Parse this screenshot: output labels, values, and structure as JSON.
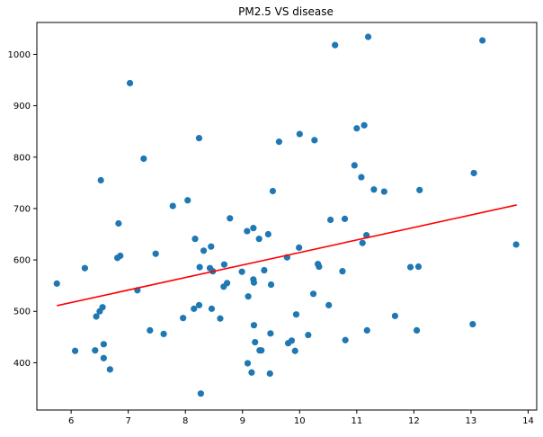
{
  "chart_data": {
    "type": "scatter",
    "title": "PM2.5 VS disease",
    "xlabel": "",
    "ylabel": "",
    "xlim": [
      5.4,
      14.15
    ],
    "ylim": [
      308,
      1062
    ],
    "xticks": [
      6,
      7,
      8,
      9,
      10,
      11,
      12,
      13,
      14
    ],
    "yticks": [
      400,
      500,
      600,
      700,
      800,
      900,
      1000
    ],
    "grid": false,
    "legend": "none",
    "colors": {
      "points": "#1f77b4",
      "fit_line": "#ff0000"
    },
    "fit_line": {
      "x": [
        5.75,
        13.8
      ],
      "y": [
        511,
        707
      ]
    },
    "points": [
      [
        5.75,
        554
      ],
      [
        6.07,
        423
      ],
      [
        6.24,
        584
      ],
      [
        6.42,
        424
      ],
      [
        6.44,
        490
      ],
      [
        6.5,
        500
      ],
      [
        6.52,
        755
      ],
      [
        6.55,
        508
      ],
      [
        6.57,
        436
      ],
      [
        6.57,
        409
      ],
      [
        6.68,
        387
      ],
      [
        6.81,
        604
      ],
      [
        6.83,
        671
      ],
      [
        6.86,
        608
      ],
      [
        7.03,
        944
      ],
      [
        7.16,
        541
      ],
      [
        7.27,
        797
      ],
      [
        7.38,
        463
      ],
      [
        7.48,
        612
      ],
      [
        7.62,
        456
      ],
      [
        7.78,
        705
      ],
      [
        7.96,
        487
      ],
      [
        8.04,
        716
      ],
      [
        8.15,
        505
      ],
      [
        8.17,
        641
      ],
      [
        8.24,
        837
      ],
      [
        8.24,
        512
      ],
      [
        8.25,
        586
      ],
      [
        8.27,
        340
      ],
      [
        8.32,
        618
      ],
      [
        8.43,
        584
      ],
      [
        8.45,
        626
      ],
      [
        8.46,
        505
      ],
      [
        8.48,
        578
      ],
      [
        8.61,
        486
      ],
      [
        8.67,
        548
      ],
      [
        8.68,
        591
      ],
      [
        8.73,
        555
      ],
      [
        8.78,
        681
      ],
      [
        8.99,
        577
      ],
      [
        9.08,
        656
      ],
      [
        9.09,
        399
      ],
      [
        9.1,
        529
      ],
      [
        9.16,
        381
      ],
      [
        9.19,
        662
      ],
      [
        9.19,
        562
      ],
      [
        9.2,
        556
      ],
      [
        9.2,
        473
      ],
      [
        9.22,
        440
      ],
      [
        9.29,
        641
      ],
      [
        9.3,
        424
      ],
      [
        9.33,
        424
      ],
      [
        9.38,
        580
      ],
      [
        9.45,
        650
      ],
      [
        9.48,
        379
      ],
      [
        9.49,
        457
      ],
      [
        9.5,
        552
      ],
      [
        9.53,
        734
      ],
      [
        9.64,
        830
      ],
      [
        9.78,
        605
      ],
      [
        9.8,
        438
      ],
      [
        9.86,
        443
      ],
      [
        9.92,
        423
      ],
      [
        9.94,
        494
      ],
      [
        9.99,
        624
      ],
      [
        10.0,
        845
      ],
      [
        10.15,
        454
      ],
      [
        10.24,
        534
      ],
      [
        10.26,
        833
      ],
      [
        10.32,
        592
      ],
      [
        10.34,
        587
      ],
      [
        10.51,
        512
      ],
      [
        10.54,
        678
      ],
      [
        10.62,
        1018
      ],
      [
        10.75,
        578
      ],
      [
        10.79,
        680
      ],
      [
        10.8,
        444
      ],
      [
        10.96,
        784
      ],
      [
        11.0,
        856
      ],
      [
        11.08,
        761
      ],
      [
        11.1,
        633
      ],
      [
        11.13,
        862
      ],
      [
        11.17,
        648
      ],
      [
        11.18,
        463
      ],
      [
        11.2,
        1034
      ],
      [
        11.3,
        737
      ],
      [
        11.48,
        733
      ],
      [
        11.67,
        491
      ],
      [
        11.94,
        586
      ],
      [
        12.05,
        463
      ],
      [
        12.08,
        587
      ],
      [
        12.1,
        736
      ],
      [
        13.03,
        475
      ],
      [
        13.05,
        769
      ],
      [
        13.2,
        1027
      ],
      [
        13.79,
        630
      ]
    ]
  }
}
